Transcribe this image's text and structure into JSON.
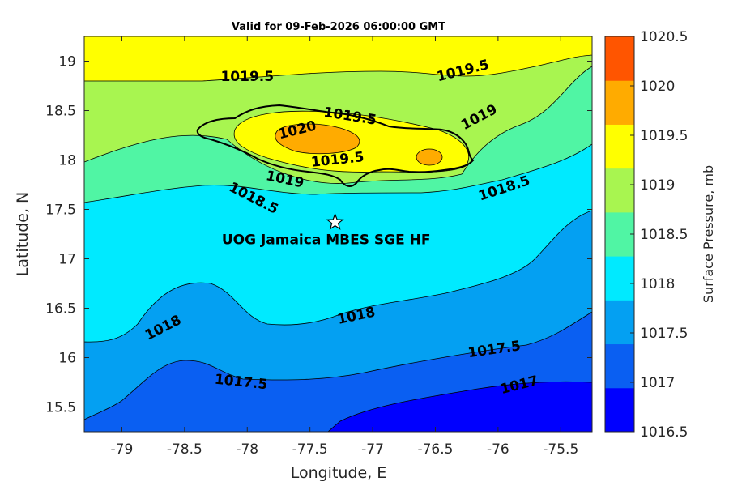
{
  "chart_data": {
    "type": "contour",
    "title": "Valid for 09-Feb-2026 06:00:00 GMT",
    "xlabel": "Longitude, E",
    "ylabel": "Latitude, N",
    "xlim": [
      -79.3,
      -75.25
    ],
    "ylim": [
      15.25,
      19.25
    ],
    "x_ticks": [
      -79,
      -78.5,
      -78,
      -77.5,
      -77,
      -76.5,
      -76,
      -75.5
    ],
    "x_tick_labels": [
      "-79",
      "-78.5",
      "-78",
      "-77.5",
      "-77",
      "-76.5",
      "-76",
      "-75.5"
    ],
    "y_ticks": [
      15.5,
      16,
      16.5,
      17,
      17.5,
      18,
      18.5,
      19
    ],
    "y_tick_labels": [
      "15.5",
      "16",
      "16.5",
      "17",
      "17.5",
      "18",
      "18.5",
      "19"
    ],
    "colorbar": {
      "label": "Surface Pressure, mb",
      "levels": [
        1016.5,
        1017,
        1017.5,
        1018,
        1018.5,
        1019,
        1019.5,
        1020,
        1020.5
      ],
      "tick_labels": [
        "1016.5",
        "1017",
        "1017.5",
        "1018",
        "1018.5",
        "1019",
        "1019.5",
        "1020",
        "1020.5"
      ],
      "colors": [
        "#0000ff",
        "#0a5ff2",
        "#04a0f2",
        "#00eaff",
        "#50f5a4",
        "#a8f550",
        "#ffff00",
        "#ffab00",
        "#ff5500"
      ]
    },
    "contour_labels": [
      {
        "text": "1019.5",
        "lon": -78.0,
        "lat": 18.84
      },
      {
        "text": "1019.5",
        "lon": -76.28,
        "lat": 18.9
      },
      {
        "text": "1019.5",
        "lon": -77.18,
        "lat": 18.44
      },
      {
        "text": "1020",
        "lon": -77.6,
        "lat": 18.3
      },
      {
        "text": "1019.5",
        "lon": -77.28,
        "lat": 18.0
      },
      {
        "text": "1019",
        "lon": -76.15,
        "lat": 18.43
      },
      {
        "text": "1019",
        "lon": -77.7,
        "lat": 17.8
      },
      {
        "text": "1018.5",
        "lon": -77.95,
        "lat": 17.61
      },
      {
        "text": "1018.5",
        "lon": -75.95,
        "lat": 17.71
      },
      {
        "text": "1018",
        "lon": -78.67,
        "lat": 16.3
      },
      {
        "text": "1018",
        "lon": -77.13,
        "lat": 16.42
      },
      {
        "text": "1017.5",
        "lon": -76.03,
        "lat": 16.08
      },
      {
        "text": "1017.5",
        "lon": -78.05,
        "lat": 15.75
      },
      {
        "text": "1017",
        "lon": -75.83,
        "lat": 15.72
      }
    ],
    "site": {
      "name": "UOG Jamaica MBES SGE HF",
      "lon": -77.3,
      "lat": 17.37
    }
  }
}
